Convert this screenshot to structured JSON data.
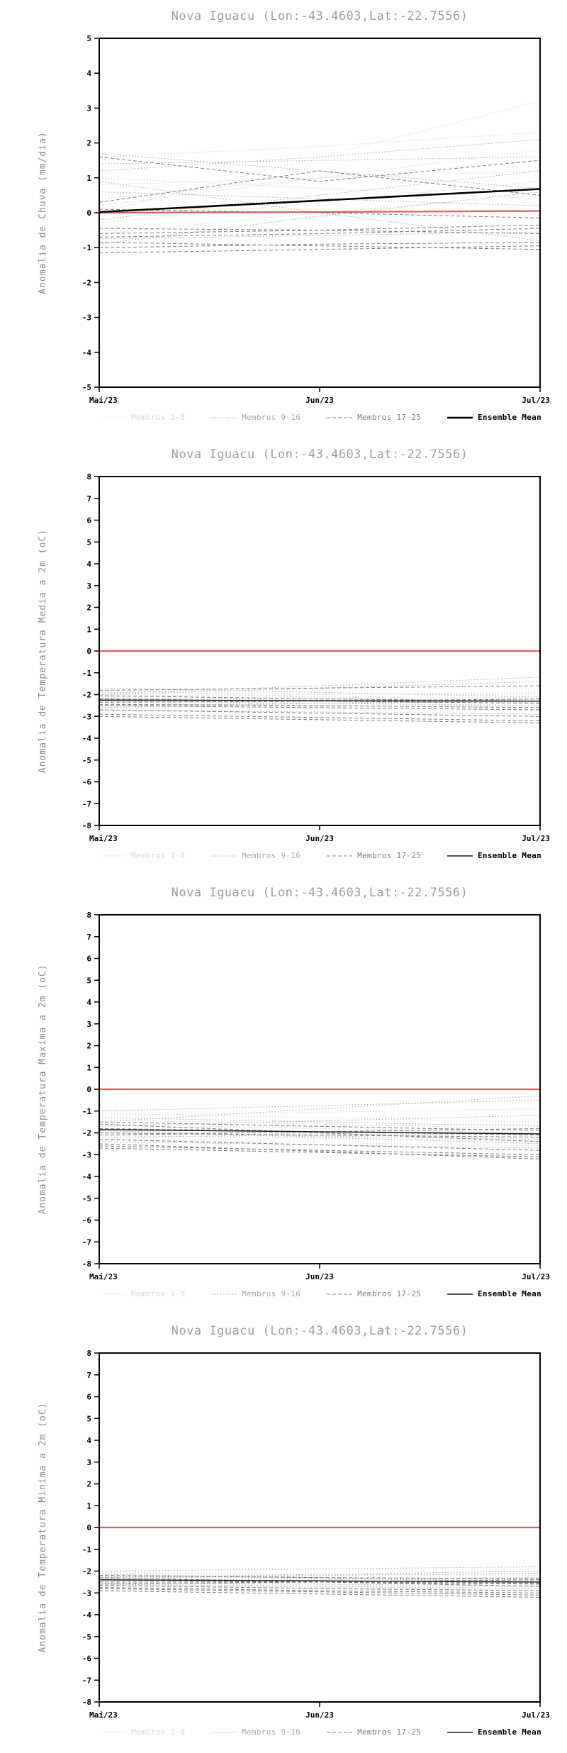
{
  "page": {
    "background": "#ffffff"
  },
  "chart_data": [
    {
      "type": "line",
      "title": "Nova Iguacu (Lon:-43.4603,Lat:-22.7556)",
      "ylabel": "Anomalia de Chuva (mm/dia)",
      "ylim": [
        -5,
        5
      ],
      "ytick_step": 1,
      "x_ticklabels": [
        "Mai/23",
        "Jun/23",
        "Jul/23"
      ],
      "grid": false,
      "legend_position": "bottom",
      "legend": [
        {
          "label": "Membros 1-8",
          "color": "#d8d8d8",
          "dash": "dotted",
          "width": 1
        },
        {
          "label": "Membros 9-16",
          "color": "#a9a9a9",
          "dash": "dotted",
          "width": 1
        },
        {
          "label": "Membros 17-25",
          "color": "#7d7d7d",
          "dash": "dashed",
          "width": 1
        },
        {
          "label": "Ensemble Mean",
          "color": "#000000",
          "dash": "solid",
          "width": 2.6
        }
      ],
      "reference_line": {
        "name": "climatology-zero",
        "color": "#dd5f5f",
        "width": 2.2,
        "values": [
          0.0,
          0.02,
          0.05
        ]
      },
      "ensemble_mean": [
        0.02,
        0.35,
        0.68
      ],
      "member_groups": [
        {
          "legend_index": 0,
          "series": [
            [
              0.0,
              1.6,
              3.2
            ],
            [
              1.6,
              1.9,
              2.3
            ],
            [
              0.4,
              1.0,
              1.5
            ],
            [
              -0.3,
              0.3,
              0.9
            ],
            [
              1.0,
              0.7,
              0.4
            ],
            [
              0.2,
              1.0,
              1.8
            ],
            [
              -0.6,
              0.0,
              0.5
            ],
            [
              0.8,
              1.0,
              1.2
            ]
          ]
        },
        {
          "legend_index": 1,
          "series": [
            [
              1.7,
              1.2,
              0.7
            ],
            [
              -0.9,
              -0.1,
              0.6
            ],
            [
              0.9,
              0.0,
              -0.8
            ],
            [
              1.4,
              1.5,
              1.6
            ],
            [
              -0.2,
              0.5,
              1.2
            ],
            [
              0.6,
              0.4,
              0.2
            ],
            [
              -0.75,
              -0.65,
              -0.55
            ],
            [
              1.2,
              1.6,
              2.1
            ]
          ]
        },
        {
          "legend_index": 2,
          "series": [
            [
              -1.0,
              -0.9,
              -0.85
            ],
            [
              -0.85,
              -0.95,
              -1.05
            ],
            [
              -0.6,
              -0.5,
              -0.35
            ],
            [
              -0.45,
              -0.5,
              -0.6
            ],
            [
              0.1,
              0.0,
              -0.15
            ],
            [
              -1.15,
              -1.05,
              -0.95
            ],
            [
              -0.7,
              -0.6,
              -0.45
            ],
            [
              1.6,
              0.9,
              1.5
            ],
            [
              0.3,
              1.2,
              0.5
            ]
          ]
        }
      ]
    },
    {
      "type": "line",
      "title": "Nova Iguacu (Lon:-43.4603,Lat:-22.7556)",
      "ylabel": "Anomalia de Temperatura Media a 2m (oC)",
      "ylim": [
        -8,
        8
      ],
      "ytick_step": 1,
      "x_ticklabels": [
        "Mai/23",
        "Jun/23",
        "Jul/23"
      ],
      "grid": false,
      "legend_position": "bottom",
      "legend": [
        {
          "label": "Membros 1-8",
          "color": "#d8d8d8",
          "dash": "dotted",
          "width": 1
        },
        {
          "label": "Membros 9-16",
          "color": "#a9a9a9",
          "dash": "dotted",
          "width": 1
        },
        {
          "label": "Membros 17-25",
          "color": "#7d7d7d",
          "dash": "dashed",
          "width": 1
        },
        {
          "label": "Ensemble Mean",
          "color": "#1a1a1a",
          "dash": "solid",
          "width": 1.5
        }
      ],
      "reference_line": {
        "name": "climatology-zero",
        "color": "#dd5f5f",
        "width": 2.2,
        "values": [
          0,
          0,
          0
        ]
      },
      "ensemble_mean": [
        -2.25,
        -2.28,
        -2.3
      ],
      "member_groups": [
        {
          "legend_index": 0,
          "series": [
            [
              -2.0,
              -2.1,
              -2.2
            ],
            [
              -2.3,
              -2.2,
              -2.1
            ],
            [
              -1.8,
              -2.1,
              -2.4
            ],
            [
              -2.6,
              -2.55,
              -2.5
            ],
            [
              -2.1,
              -2.0,
              -1.9
            ],
            [
              -2.4,
              -2.5,
              -2.6
            ],
            [
              -1.9,
              -1.95,
              -2.0
            ],
            [
              -2.2,
              -2.3,
              -2.35
            ]
          ]
        },
        {
          "legend_index": 1,
          "series": [
            [
              -2.5,
              -2.4,
              -2.3
            ],
            [
              -2.0,
              -1.7,
              -1.4
            ],
            [
              -2.7,
              -2.8,
              -2.9
            ],
            [
              -1.7,
              -1.9,
              -2.1
            ],
            [
              -2.3,
              -2.4,
              -2.5
            ],
            [
              -2.6,
              -2.4,
              -2.2
            ],
            [
              -2.15,
              -2.2,
              -2.3
            ],
            [
              -1.95,
              -1.6,
              -1.2
            ]
          ]
        },
        {
          "legend_index": 2,
          "series": [
            [
              -2.9,
              -3.05,
              -3.2
            ],
            [
              -2.2,
              -2.3,
              -2.4
            ],
            [
              -2.5,
              -2.6,
              -2.7
            ],
            [
              -1.8,
              -1.7,
              -1.6
            ],
            [
              -2.35,
              -2.3,
              -2.2
            ],
            [
              -2.7,
              -2.85,
              -3.0
            ],
            [
              -2.05,
              -2.2,
              -2.3
            ],
            [
              -2.45,
              -2.5,
              -2.6
            ],
            [
              -3.0,
              -3.15,
              -3.3
            ]
          ]
        }
      ]
    },
    {
      "type": "line",
      "title": "Nova Iguacu (Lon:-43.4603,Lat:-22.7556)",
      "ylabel": "Anomalia de Temperatura Maxima a 2m (oC)",
      "ylim": [
        -8,
        8
      ],
      "ytick_step": 1,
      "x_ticklabels": [
        "Mai/23",
        "Jun/23",
        "Jul/23"
      ],
      "grid": false,
      "legend_position": "bottom",
      "legend": [
        {
          "label": "Membros 1-8",
          "color": "#d8d8d8",
          "dash": "dotted",
          "width": 1
        },
        {
          "label": "Membros 9-16",
          "color": "#a9a9a9",
          "dash": "dotted",
          "width": 1
        },
        {
          "label": "Membros 17-25",
          "color": "#7d7d7d",
          "dash": "dashed",
          "width": 1
        },
        {
          "label": "Ensemble Mean",
          "color": "#1a1a1a",
          "dash": "solid",
          "width": 1.5
        }
      ],
      "reference_line": {
        "name": "climatology-zero",
        "color": "#dd5f5f",
        "width": 2.2,
        "values": [
          0,
          0,
          0
        ]
      },
      "ensemble_mean": [
        -1.85,
        -1.95,
        -2.05
      ],
      "member_groups": [
        {
          "legend_index": 0,
          "series": [
            [
              -1.4,
              -1.6,
              -1.8
            ],
            [
              -1.9,
              -2.05,
              -2.2
            ],
            [
              -1.2,
              -1.05,
              -0.9
            ],
            [
              -2.1,
              -2.25,
              -2.4
            ],
            [
              -1.6,
              -1.8,
              -2.0
            ],
            [
              -2.3,
              -2.45,
              -2.6
            ],
            [
              -1.1,
              -1.3,
              -1.5
            ],
            [
              -1.8,
              -1.7,
              -1.6
            ]
          ]
        },
        {
          "legend_index": 1,
          "series": [
            [
              -1.5,
              -0.9,
              -0.3
            ],
            [
              -2.0,
              -2.15,
              -2.3
            ],
            [
              -1.3,
              -1.5,
              -1.7
            ],
            [
              -2.4,
              -2.55,
              -2.7
            ],
            [
              -1.7,
              -1.45,
              -1.2
            ],
            [
              -2.2,
              -2.1,
              -2.0
            ],
            [
              -1.9,
              -2.2,
              -2.5
            ],
            [
              -1.0,
              -0.75,
              -0.5
            ]
          ]
        },
        {
          "legend_index": 2,
          "series": [
            [
              -2.6,
              -2.8,
              -3.0
            ],
            [
              -1.8,
              -1.95,
              -2.1
            ],
            [
              -2.3,
              -2.55,
              -2.8
            ],
            [
              -1.5,
              -1.7,
              -1.9
            ],
            [
              -2.0,
              -2.1,
              -2.2
            ],
            [
              -2.7,
              -2.9,
              -3.1
            ],
            [
              -1.6,
              -2.0,
              -2.4
            ],
            [
              -2.1,
              -1.95,
              -1.8
            ],
            [
              -2.5,
              -2.85,
              -3.2
            ]
          ]
        }
      ]
    },
    {
      "type": "line",
      "title": "Nova Iguacu (Lon:-43.4603,Lat:-22.7556)",
      "ylabel": "Anomalia de Temperatura Minima a 2m (oC)",
      "ylim": [
        -8,
        8
      ],
      "ytick_step": 1,
      "x_ticklabels": [
        "Mai/23",
        "Jun/23",
        "Jul/23"
      ],
      "grid": false,
      "legend_position": "bottom",
      "legend": [
        {
          "label": "Membros 1-8",
          "color": "#d8d8d8",
          "dash": "dotted",
          "width": 1
        },
        {
          "label": "Membros 9-16",
          "color": "#a9a9a9",
          "dash": "dotted",
          "width": 1
        },
        {
          "label": "Membros 17-25",
          "color": "#7d7d7d",
          "dash": "dashed",
          "width": 1
        },
        {
          "label": "Ensemble Mean",
          "color": "#1a1a1a",
          "dash": "solid",
          "width": 1.5
        }
      ],
      "reference_line": {
        "name": "climatology-zero",
        "color": "#dd5f5f",
        "width": 2.2,
        "values": [
          0,
          0,
          0
        ]
      },
      "ensemble_mean": [
        -2.4,
        -2.45,
        -2.5
      ],
      "member_groups": [
        {
          "legend_index": 0,
          "series": [
            [
              -2.2,
              -2.3,
              -2.4
            ],
            [
              -2.5,
              -2.4,
              -2.3
            ],
            [
              -2.0,
              -2.3,
              -2.6
            ],
            [
              -2.7,
              -2.75,
              -2.8
            ],
            [
              -2.3,
              -2.2,
              -2.1
            ],
            [
              -2.6,
              -2.75,
              -2.9
            ],
            [
              -2.1,
              -2.15,
              -2.2
            ],
            [
              -2.4,
              -2.45,
              -2.5
            ]
          ]
        },
        {
          "legend_index": 1,
          "series": [
            [
              -2.3,
              -2.15,
              -2.0
            ],
            [
              -2.6,
              -2.7,
              -2.8
            ],
            [
              -2.15,
              -2.3,
              -2.5
            ],
            [
              -2.45,
              -2.35,
              -2.3
            ],
            [
              -2.0,
              -1.9,
              -1.8
            ],
            [
              -2.55,
              -2.6,
              -2.7
            ],
            [
              -2.25,
              -2.3,
              -2.4
            ],
            [
              -2.35,
              -2.2,
              -2.1
            ]
          ]
        },
        {
          "legend_index": 2,
          "series": [
            [
              -2.8,
              -2.95,
              -3.1
            ],
            [
              -2.4,
              -2.5,
              -2.6
            ],
            [
              -2.65,
              -2.8,
              -2.9
            ],
            [
              -2.2,
              -2.3,
              -2.35
            ],
            [
              -2.5,
              -2.5,
              -2.55
            ],
            [
              -2.9,
              -3.05,
              -3.2
            ],
            [
              -2.3,
              -2.5,
              -2.7
            ],
            [
              -2.6,
              -2.5,
              -2.4
            ],
            [
              -2.75,
              -2.9,
              -3.0
            ]
          ]
        }
      ]
    }
  ]
}
